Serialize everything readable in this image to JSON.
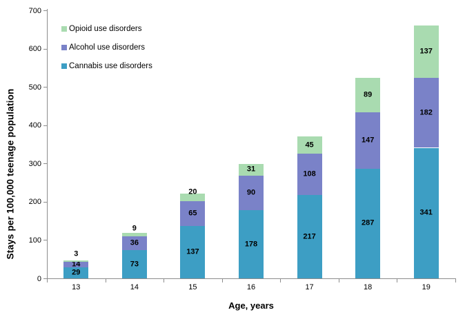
{
  "chart_data": {
    "type": "bar",
    "stacked": true,
    "xlabel": "Age, years",
    "ylabel": "Stays per 100,000 teenage population",
    "categories": [
      "13",
      "14",
      "15",
      "16",
      "17",
      "18",
      "19"
    ],
    "series": [
      {
        "name": "Cannabis use disorders",
        "color": "#3D9EC4",
        "values": [
          29,
          73,
          137,
          178,
          217,
          287,
          341
        ]
      },
      {
        "name": "Alcohol use disorders",
        "color": "#7A82C8",
        "values": [
          14,
          36,
          65,
          90,
          108,
          147,
          182
        ]
      },
      {
        "name": "Opioid use disorders",
        "color": "#A9DBB0",
        "values": [
          3,
          9,
          20,
          31,
          45,
          89,
          137
        ]
      }
    ],
    "stack_totals": [
      46,
      118,
      222,
      299,
      370,
      523,
      660
    ],
    "legend_order": [
      "Opioid use disorders",
      "Alcohol use disorders",
      "Cannabis use disorders"
    ],
    "legend_position": "top-left-inside",
    "y_axis": {
      "min": 0,
      "max": 700,
      "step": 100,
      "tick_labels": [
        "0",
        "100",
        "200",
        "300",
        "400",
        "500",
        "600",
        "700"
      ]
    },
    "grid": false,
    "axis_color": "#8C8C8C",
    "text_color": "#000000",
    "background_color": "#FFFFFF"
  }
}
